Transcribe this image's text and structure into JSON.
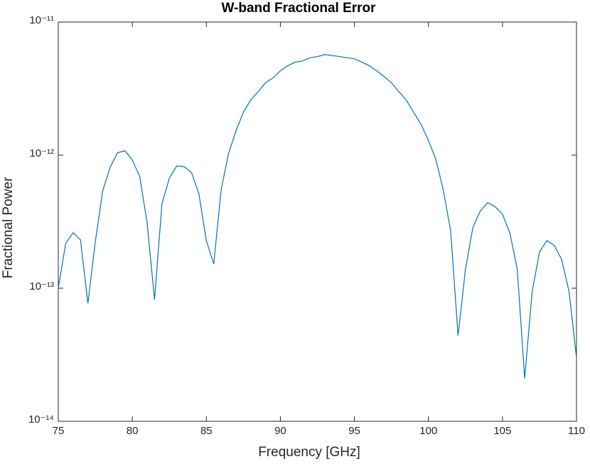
{
  "chart_data": {
    "type": "line",
    "title": "W-band Fractional Error",
    "x_label": "Frequency [GHz]",
    "y_label": "Fractional Power",
    "y_scale": "log",
    "xlim": [
      75,
      110
    ],
    "xticks": [
      75,
      80,
      85,
      90,
      95,
      100,
      105,
      110
    ],
    "ylim": [
      1e-14,
      1e-11
    ],
    "yticks": [
      {
        "value": 1e-14,
        "label": "10⁻¹⁴"
      },
      {
        "value": 1e-13,
        "label": "10⁻¹³"
      },
      {
        "value": 1e-12,
        "label": "10⁻¹²"
      },
      {
        "value": 1e-11,
        "label": "10⁻¹¹"
      }
    ],
    "x": [
      75,
      75.5,
      76,
      76.5,
      77,
      77.5,
      78,
      78.5,
      79,
      79.5,
      80,
      80.5,
      81,
      81.5,
      82,
      82.5,
      83,
      83.5,
      84,
      84.5,
      85,
      85.5,
      86,
      86.5,
      87,
      87.5,
      88,
      88.5,
      89,
      89.5,
      90,
      90.5,
      91,
      91.5,
      92,
      92.5,
      93,
      93.5,
      94,
      94.5,
      95,
      95.5,
      96,
      96.5,
      97,
      97.5,
      98,
      98.5,
      99,
      99.5,
      100,
      100.5,
      101,
      101.5,
      102,
      102.5,
      103,
      103.5,
      104,
      104.5,
      105,
      105.5,
      106,
      106.5,
      107,
      107.5,
      108,
      108.5,
      109,
      109.5,
      110
    ],
    "series": [
      {
        "color": "#0072bd",
        "values": [
          1e-13,
          2.17e-13,
          2.61e-13,
          2.31e-13,
          7.7e-14,
          2.23e-13,
          5.4e-13,
          8.1e-13,
          1.04e-12,
          1.08e-12,
          9.2e-13,
          6.9e-13,
          3.1e-13,
          8.2e-14,
          4.3e-13,
          6.7e-13,
          8.3e-13,
          8.2e-13,
          7.4e-13,
          5.1e-13,
          2.28e-13,
          1.52e-13,
          5.5e-13,
          1.03e-12,
          1.52e-12,
          2.1e-12,
          2.6e-12,
          3e-12,
          3.5e-12,
          3.8e-12,
          4.3e-12,
          4.7e-12,
          5e-12,
          5.1e-12,
          5.4e-12,
          5.5e-12,
          5.7e-12,
          5.6e-12,
          5.5e-12,
          5.4e-12,
          5.3e-12,
          5e-12,
          4.7e-12,
          4.3e-12,
          3.9e-12,
          3.5e-12,
          3e-12,
          2.6e-12,
          2.1e-12,
          1.7e-12,
          1.29e-12,
          9.3e-13,
          5.5e-13,
          2.7e-13,
          4.4e-14,
          1.39e-13,
          2.85e-13,
          3.8e-13,
          4.4e-13,
          4.1e-13,
          3.6e-13,
          2.6e-13,
          1.39e-13,
          2.1e-14,
          9.3e-14,
          1.87e-13,
          2.28e-13,
          2.1e-13,
          1.64e-13,
          9.4e-14,
          3e-14
        ]
      }
    ]
  }
}
